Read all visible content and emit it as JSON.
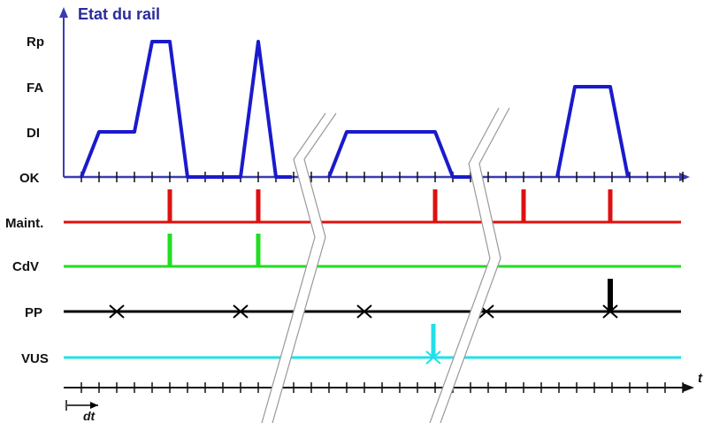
{
  "title": "Etat du rail",
  "state_levels": [
    "OK",
    "DI",
    "FA",
    "Rp"
  ],
  "signals": [
    {
      "key": "maint",
      "label": "Maint.",
      "color": "#dd1111"
    },
    {
      "key": "cdv",
      "label": "CdV",
      "color": "#22dd22"
    },
    {
      "key": "pp",
      "label": "PP",
      "color": "#000000"
    },
    {
      "key": "vus",
      "label": "VUS",
      "color": "#22e0e8"
    }
  ],
  "curve_color": "#1a1acc",
  "axis_color": "#3b3bb0",
  "time_label": "t",
  "step_label": "dt",
  "icons": [
    "arrow-up-icon",
    "arrow-right-icon",
    "time-break-icon",
    "cross-mark-icon"
  ]
}
